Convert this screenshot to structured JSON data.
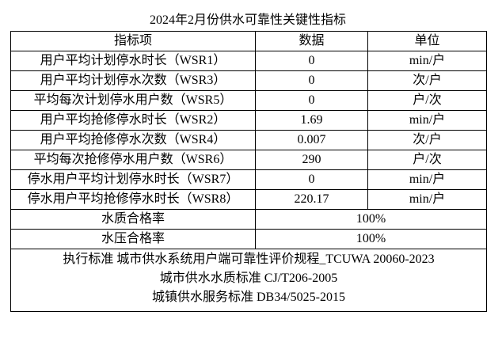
{
  "title": "2024年2月份供水可靠性关键性指标",
  "table": {
    "header": [
      "指标项",
      "数据",
      "单位"
    ],
    "rows": [
      [
        "用户平均计划停水时长（WSR1）",
        0,
        "min/户"
      ],
      [
        "用户平均计划停水次数（WSR3）",
        0,
        "次/户"
      ],
      [
        "平均每次计划停水用户数（WSR5）",
        0,
        "户/次"
      ],
      [
        "用户平均抢修停水时长（WSR2）",
        1.69,
        "min/户"
      ],
      [
        "用户平均抢修停水次数（WSR4）",
        0.007,
        "次/户"
      ],
      [
        "平均每次抢修停水用户数（WSR6）",
        290,
        "户/次"
      ],
      [
        "停水用户平均计划停水时长（WSR7）",
        0,
        "min/户"
      ],
      [
        "停水用户平均抢修停水时长（WSR8）",
        220.17,
        "min/户"
      ]
    ],
    "rates": [
      [
        "水质合格率",
        "100%"
      ],
      [
        "水压合格率",
        "100%"
      ]
    ],
    "footer": [
      "执行标准 城市供水系统用户端可靠性评价规程_TCUWA 20060-2023",
      "城市供水水质标准 CJ/T206-2005",
      "城镇供水服务标准 DB34/5025-2015"
    ]
  }
}
